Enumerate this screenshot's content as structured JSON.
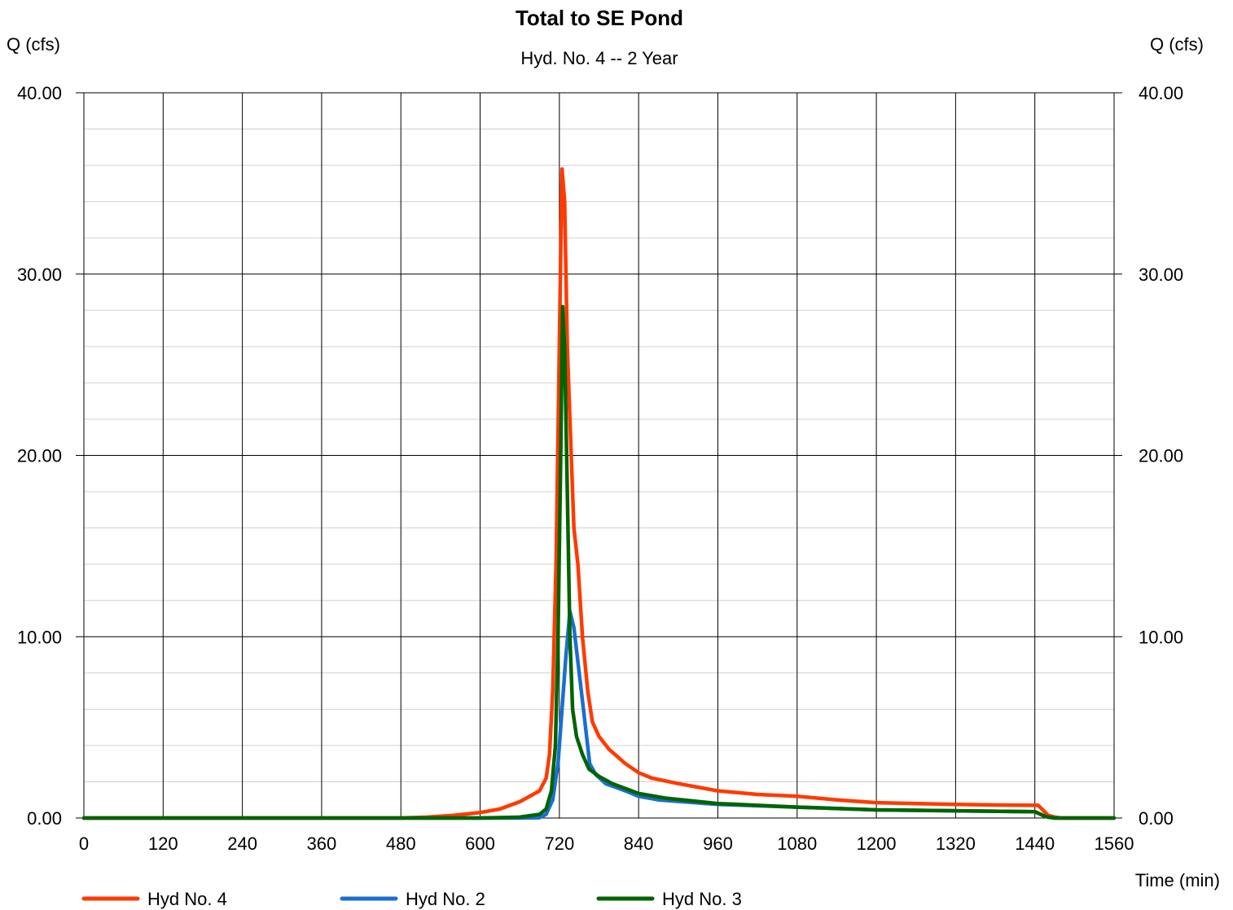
{
  "chart_data": {
    "type": "line",
    "title": "Total to SE Pond",
    "subtitle": "Hyd. No. 4 -- 2 Year",
    "ylabel_left": "Q (cfs)",
    "ylabel_right": "Q (cfs)",
    "xlabel": "Time (min)",
    "xlim": [
      0,
      1560
    ],
    "ylim": [
      0,
      40
    ],
    "x_ticks": [
      "0",
      "120",
      "240",
      "360",
      "480",
      "600",
      "720",
      "840",
      "960",
      "1080",
      "1200",
      "1320",
      "1440",
      "1560"
    ],
    "y_ticks": [
      "0.00",
      "10.00",
      "20.00",
      "30.00",
      "40.00"
    ],
    "y_minor_step": 2,
    "grid": true,
    "legend_position": "bottom",
    "series": [
      {
        "name": "Hyd No. 4",
        "color": "#ff3a00",
        "points": [
          [
            0,
            0
          ],
          [
            480,
            0
          ],
          [
            520,
            0.05
          ],
          [
            560,
            0.15
          ],
          [
            600,
            0.3
          ],
          [
            630,
            0.5
          ],
          [
            660,
            0.9
          ],
          [
            690,
            1.5
          ],
          [
            700,
            2.2
          ],
          [
            705,
            3.5
          ],
          [
            710,
            7
          ],
          [
            715,
            14
          ],
          [
            720,
            26
          ],
          [
            724,
            35.8
          ],
          [
            728,
            34
          ],
          [
            732,
            26
          ],
          [
            737,
            21
          ],
          [
            742,
            16
          ],
          [
            748,
            14
          ],
          [
            755,
            10
          ],
          [
            763,
            7
          ],
          [
            770,
            5.3
          ],
          [
            780,
            4.5
          ],
          [
            795,
            3.8
          ],
          [
            820,
            3
          ],
          [
            840,
            2.5
          ],
          [
            860,
            2.2
          ],
          [
            900,
            1.9
          ],
          [
            960,
            1.5
          ],
          [
            1020,
            1.3
          ],
          [
            1080,
            1.2
          ],
          [
            1140,
            1
          ],
          [
            1200,
            0.85
          ],
          [
            1260,
            0.8
          ],
          [
            1320,
            0.75
          ],
          [
            1380,
            0.72
          ],
          [
            1445,
            0.7
          ],
          [
            1452,
            0.45
          ],
          [
            1460,
            0.15
          ],
          [
            1470,
            0.05
          ],
          [
            1480,
            0
          ],
          [
            1560,
            0
          ]
        ]
      },
      {
        "name": "Hyd No. 2",
        "color": "#1a6fd0",
        "points": [
          [
            0,
            0
          ],
          [
            660,
            0
          ],
          [
            690,
            0.02
          ],
          [
            700,
            0.2
          ],
          [
            710,
            1
          ],
          [
            718,
            3
          ],
          [
            724,
            6
          ],
          [
            730,
            9
          ],
          [
            736,
            11.4
          ],
          [
            742,
            10.5
          ],
          [
            750,
            8
          ],
          [
            758,
            5.5
          ],
          [
            766,
            3
          ],
          [
            775,
            2.4
          ],
          [
            790,
            1.9
          ],
          [
            820,
            1.5
          ],
          [
            840,
            1.2
          ],
          [
            870,
            1
          ],
          [
            960,
            0.75
          ],
          [
            1080,
            0.6
          ],
          [
            1200,
            0.45
          ],
          [
            1320,
            0.4
          ],
          [
            1440,
            0.35
          ],
          [
            1452,
            0.15
          ],
          [
            1460,
            0.05
          ],
          [
            1470,
            0
          ],
          [
            1560,
            0
          ]
        ]
      },
      {
        "name": "Hyd No. 3",
        "color": "#006400",
        "points": [
          [
            0,
            0
          ],
          [
            600,
            0
          ],
          [
            660,
            0.05
          ],
          [
            690,
            0.2
          ],
          [
            700,
            0.5
          ],
          [
            708,
            1.5
          ],
          [
            714,
            4
          ],
          [
            718,
            10
          ],
          [
            722,
            20
          ],
          [
            725,
            28.2
          ],
          [
            728,
            26
          ],
          [
            732,
            18
          ],
          [
            736,
            10
          ],
          [
            740,
            6
          ],
          [
            746,
            4.5
          ],
          [
            755,
            3.5
          ],
          [
            765,
            2.7
          ],
          [
            780,
            2.3
          ],
          [
            800,
            1.9
          ],
          [
            840,
            1.35
          ],
          [
            880,
            1.1
          ],
          [
            960,
            0.8
          ],
          [
            1080,
            0.6
          ],
          [
            1200,
            0.45
          ],
          [
            1320,
            0.4
          ],
          [
            1440,
            0.35
          ],
          [
            1452,
            0.15
          ],
          [
            1460,
            0.05
          ],
          [
            1470,
            0
          ],
          [
            1560,
            0
          ]
        ]
      }
    ]
  }
}
